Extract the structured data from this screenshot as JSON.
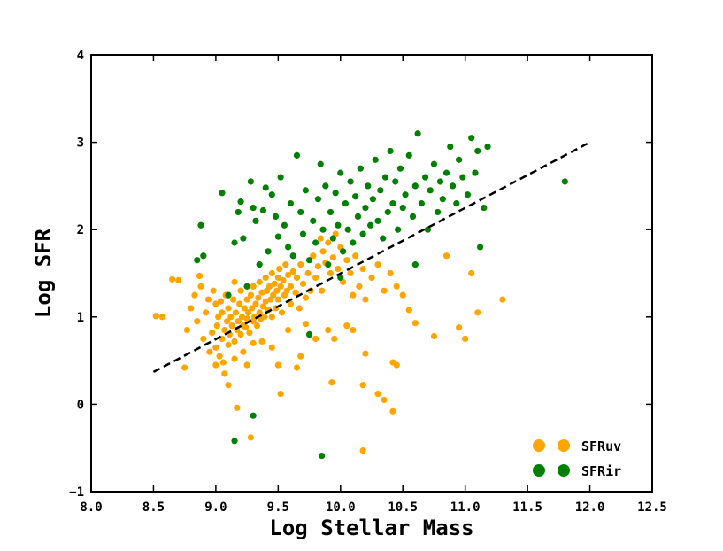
{
  "chart_data": {
    "type": "scatter",
    "title": "",
    "xlabel": "Log Stellar Mass",
    "ylabel": "Log SFR",
    "xlim": [
      8.0,
      12.5
    ],
    "ylim": [
      -1,
      4
    ],
    "xticks": [
      "8.0",
      "8.5",
      "9.0",
      "9.5",
      "10.0",
      "10.5",
      "11.0",
      "11.5",
      "12.0",
      "12.5"
    ],
    "yticks": [
      "−1",
      "0",
      "1",
      "2",
      "3",
      "4"
    ],
    "grid": false,
    "legend_position": "bottom-right",
    "fit_line": {
      "style": "dashed",
      "color": "#000000",
      "points": [
        [
          8.5,
          0.37
        ],
        [
          12.0,
          3.0
        ]
      ]
    },
    "series": [
      {
        "name": "SFRuv",
        "color": "#FFA500",
        "points": [
          [
            8.52,
            1.01
          ],
          [
            8.65,
            1.43
          ],
          [
            8.7,
            1.42
          ],
          [
            8.75,
            0.42
          ],
          [
            8.77,
            0.85
          ],
          [
            8.8,
            1.1
          ],
          [
            8.83,
            1.25
          ],
          [
            8.85,
            0.95
          ],
          [
            8.87,
            1.47
          ],
          [
            8.88,
            1.35
          ],
          [
            8.9,
            0.75
          ],
          [
            8.92,
            1.05
          ],
          [
            8.94,
            1.2
          ],
          [
            8.95,
            0.6
          ],
          [
            8.97,
            0.82
          ],
          [
            8.98,
            1.3
          ],
          [
            9.0,
            0.65
          ],
          [
            9.0,
            1.15
          ],
          [
            9.01,
            0.9
          ],
          [
            9.02,
            1.0
          ],
          [
            9.03,
            0.55
          ],
          [
            9.04,
            1.18
          ],
          [
            9.05,
            0.75
          ],
          [
            9.05,
            1.05
          ],
          [
            9.06,
            0.48
          ],
          [
            9.07,
            0.85
          ],
          [
            9.08,
            1.25
          ],
          [
            9.09,
            0.95
          ],
          [
            9.1,
            0.68
          ],
          [
            9.1,
            1.1
          ],
          [
            9.11,
            0.8
          ],
          [
            9.12,
            1.0
          ],
          [
            9.13,
            0.9
          ],
          [
            9.14,
            1.2
          ],
          [
            9.15,
            0.72
          ],
          [
            9.15,
            1.4
          ],
          [
            9.16,
            1.05
          ],
          [
            9.17,
            0.85
          ],
          [
            9.18,
            0.95
          ],
          [
            9.19,
            1.15
          ],
          [
            9.2,
            0.8
          ],
          [
            9.2,
            1.3
          ],
          [
            9.21,
            1.0
          ],
          [
            9.22,
            0.9
          ],
          [
            9.23,
            1.1
          ],
          [
            9.24,
            0.88
          ],
          [
            9.25,
            1.2
          ],
          [
            9.25,
            0.98
          ],
          [
            9.26,
            1.05
          ],
          [
            9.27,
            0.82
          ],
          [
            9.28,
            1.25
          ],
          [
            9.29,
            1.1
          ],
          [
            9.3,
            0.95
          ],
          [
            9.3,
            1.35
          ],
          [
            9.31,
            1.0
          ],
          [
            9.32,
            1.15
          ],
          [
            9.33,
            0.9
          ],
          [
            9.34,
            1.22
          ],
          [
            9.35,
            1.05
          ],
          [
            9.35,
            1.4
          ],
          [
            9.36,
            0.98
          ],
          [
            9.37,
            1.28
          ],
          [
            9.38,
            1.12
          ],
          [
            9.39,
            1.0
          ],
          [
            9.4,
            1.18
          ],
          [
            9.4,
            1.45
          ],
          [
            9.41,
            1.3
          ],
          [
            9.42,
            1.08
          ],
          [
            9.43,
            1.35
          ],
          [
            9.44,
            1.2
          ],
          [
            9.45,
            1.0
          ],
          [
            9.45,
            1.5
          ],
          [
            9.46,
            1.25
          ],
          [
            9.47,
            1.38
          ],
          [
            9.48,
            1.1
          ],
          [
            9.49,
            1.3
          ],
          [
            9.5,
            1.45
          ],
          [
            9.5,
            1.2
          ],
          [
            9.51,
            1.55
          ],
          [
            9.52,
            1.35
          ],
          [
            9.53,
            1.05
          ],
          [
            9.54,
            1.42
          ],
          [
            9.55,
            1.25
          ],
          [
            9.56,
            1.6
          ],
          [
            9.57,
            1.3
          ],
          [
            9.58,
            1.48
          ],
          [
            9.6,
            1.15
          ],
          [
            9.6,
            1.35
          ],
          [
            9.62,
            1.52
          ],
          [
            9.64,
            1.28
          ],
          [
            9.65,
            1.45
          ],
          [
            9.67,
            1.1
          ],
          [
            9.68,
            1.6
          ],
          [
            9.7,
            1.38
          ],
          [
            9.72,
            1.22
          ],
          [
            9.74,
            1.5
          ],
          [
            9.76,
            1.3
          ],
          [
            9.78,
            1.7
          ],
          [
            9.8,
            1.45
          ],
          [
            9.82,
            1.58
          ],
          [
            9.84,
            1.9
          ],
          [
            9.85,
            1.3
          ],
          [
            9.86,
            1.75
          ],
          [
            9.88,
            1.62
          ],
          [
            9.9,
            1.85
          ],
          [
            9.92,
            1.5
          ],
          [
            9.94,
            1.68
          ],
          [
            9.96,
            1.95
          ],
          [
            9.98,
            1.55
          ],
          [
            10.0,
            1.8
          ],
          [
            10.02,
            1.4
          ],
          [
            10.05,
            1.65
          ],
          [
            10.08,
            1.5
          ],
          [
            10.1,
            1.25
          ],
          [
            10.12,
            1.7
          ],
          [
            10.15,
            1.35
          ],
          [
            10.18,
            1.55
          ],
          [
            10.2,
            1.2
          ],
          [
            10.25,
            1.45
          ],
          [
            10.3,
            1.6
          ],
          [
            10.35,
            1.3
          ],
          [
            10.4,
            1.5
          ],
          [
            10.45,
            1.35
          ],
          [
            10.5,
            1.25
          ],
          [
            10.55,
            1.08
          ],
          [
            10.6,
            0.93
          ],
          [
            10.75,
            0.78
          ],
          [
            10.85,
            1.7
          ],
          [
            10.95,
            0.88
          ],
          [
            11.0,
            0.75
          ],
          [
            11.05,
            1.5
          ],
          [
            11.1,
            1.05
          ],
          [
            11.3,
            1.2
          ],
          [
            9.0,
            0.45
          ],
          [
            9.07,
            0.35
          ],
          [
            9.1,
            0.22
          ],
          [
            9.15,
            0.52
          ],
          [
            9.22,
            0.6
          ],
          [
            9.25,
            0.45
          ],
          [
            9.3,
            0.7
          ],
          [
            9.37,
            0.72
          ],
          [
            9.45,
            0.65
          ],
          [
            9.5,
            0.45
          ],
          [
            9.58,
            0.85
          ],
          [
            9.65,
            0.42
          ],
          [
            9.68,
            0.55
          ],
          [
            9.72,
            0.92
          ],
          [
            9.75,
            0.8
          ],
          [
            9.8,
            0.75
          ],
          [
            9.9,
            0.85
          ],
          [
            9.93,
            0.25
          ],
          [
            9.95,
            0.75
          ],
          [
            10.05,
            0.9
          ],
          [
            10.1,
            0.85
          ],
          [
            10.18,
            0.22
          ],
          [
            10.2,
            0.58
          ],
          [
            10.3,
            0.12
          ],
          [
            10.35,
            0.05
          ],
          [
            10.42,
            0.48
          ],
          [
            10.45,
            0.45
          ],
          [
            10.42,
            -0.08
          ],
          [
            9.52,
            0.12
          ],
          [
            9.17,
            -0.04
          ],
          [
            9.28,
            -0.38
          ],
          [
            10.18,
            -0.53
          ],
          [
            8.57,
            1.0
          ]
        ]
      },
      {
        "name": "SFRir",
        "color": "#008000",
        "points": [
          [
            8.85,
            1.65
          ],
          [
            8.88,
            2.05
          ],
          [
            8.9,
            1.7
          ],
          [
            9.05,
            2.42
          ],
          [
            9.1,
            1.25
          ],
          [
            9.15,
            1.85
          ],
          [
            9.18,
            2.2
          ],
          [
            9.2,
            2.32
          ],
          [
            9.22,
            1.9
          ],
          [
            9.25,
            1.35
          ],
          [
            9.28,
            2.55
          ],
          [
            9.3,
            2.25
          ],
          [
            9.32,
            2.1
          ],
          [
            9.35,
            1.6
          ],
          [
            9.38,
            2.22
          ],
          [
            9.4,
            2.48
          ],
          [
            9.42,
            1.75
          ],
          [
            9.45,
            2.4
          ],
          [
            9.48,
            2.15
          ],
          [
            9.5,
            1.92
          ],
          [
            9.52,
            2.6
          ],
          [
            9.55,
            2.05
          ],
          [
            9.58,
            1.8
          ],
          [
            9.6,
            2.3
          ],
          [
            9.62,
            1.7
          ],
          [
            9.65,
            2.85
          ],
          [
            9.68,
            2.2
          ],
          [
            9.7,
            1.95
          ],
          [
            9.72,
            2.45
          ],
          [
            9.75,
            1.65
          ],
          [
            9.78,
            2.1
          ],
          [
            9.8,
            1.85
          ],
          [
            9.82,
            2.35
          ],
          [
            9.84,
            2.75
          ],
          [
            9.86,
            2.0
          ],
          [
            9.88,
            2.5
          ],
          [
            9.9,
            1.6
          ],
          [
            9.92,
            2.2
          ],
          [
            9.94,
            1.9
          ],
          [
            9.96,
            2.42
          ],
          [
            9.98,
            2.05
          ],
          [
            10.0,
            2.65
          ],
          [
            10.02,
            1.75
          ],
          [
            10.04,
            2.3
          ],
          [
            10.06,
            2.0
          ],
          [
            10.08,
            2.55
          ],
          [
            10.1,
            1.85
          ],
          [
            10.12,
            2.38
          ],
          [
            10.14,
            2.15
          ],
          [
            10.16,
            2.7
          ],
          [
            10.18,
            1.95
          ],
          [
            10.2,
            2.25
          ],
          [
            10.22,
            2.5
          ],
          [
            10.24,
            2.05
          ],
          [
            10.26,
            2.35
          ],
          [
            10.28,
            2.8
          ],
          [
            10.3,
            2.1
          ],
          [
            10.32,
            2.45
          ],
          [
            10.34,
            1.9
          ],
          [
            10.36,
            2.6
          ],
          [
            10.38,
            2.2
          ],
          [
            10.4,
            2.9
          ],
          [
            10.42,
            2.3
          ],
          [
            10.44,
            2.55
          ],
          [
            10.46,
            2.0
          ],
          [
            10.48,
            2.7
          ],
          [
            10.5,
            2.25
          ],
          [
            10.52,
            2.4
          ],
          [
            10.55,
            2.85
          ],
          [
            10.58,
            2.15
          ],
          [
            10.6,
            2.5
          ],
          [
            10.62,
            3.1
          ],
          [
            10.65,
            2.3
          ],
          [
            10.68,
            2.6
          ],
          [
            10.7,
            2.0
          ],
          [
            10.72,
            2.45
          ],
          [
            10.75,
            2.75
          ],
          [
            10.78,
            2.2
          ],
          [
            10.8,
            2.55
          ],
          [
            10.82,
            2.35
          ],
          [
            10.85,
            2.65
          ],
          [
            10.88,
            2.95
          ],
          [
            10.9,
            2.5
          ],
          [
            10.93,
            2.3
          ],
          [
            10.95,
            2.8
          ],
          [
            10.98,
            2.6
          ],
          [
            11.02,
            2.4
          ],
          [
            11.05,
            3.05
          ],
          [
            11.08,
            2.65
          ],
          [
            11.1,
            2.9
          ],
          [
            11.12,
            1.8
          ],
          [
            11.15,
            2.25
          ],
          [
            11.18,
            2.95
          ],
          [
            11.8,
            2.55
          ],
          [
            10.6,
            1.6
          ],
          [
            10.0,
            1.45
          ],
          [
            9.75,
            0.8
          ],
          [
            9.3,
            -0.13
          ],
          [
            9.15,
            -0.42
          ],
          [
            9.85,
            -0.59
          ]
        ]
      }
    ]
  },
  "legend": [
    {
      "label": "SFRuv",
      "color": "#FFA500"
    },
    {
      "label": "SFRir",
      "color": "#008000"
    }
  ]
}
